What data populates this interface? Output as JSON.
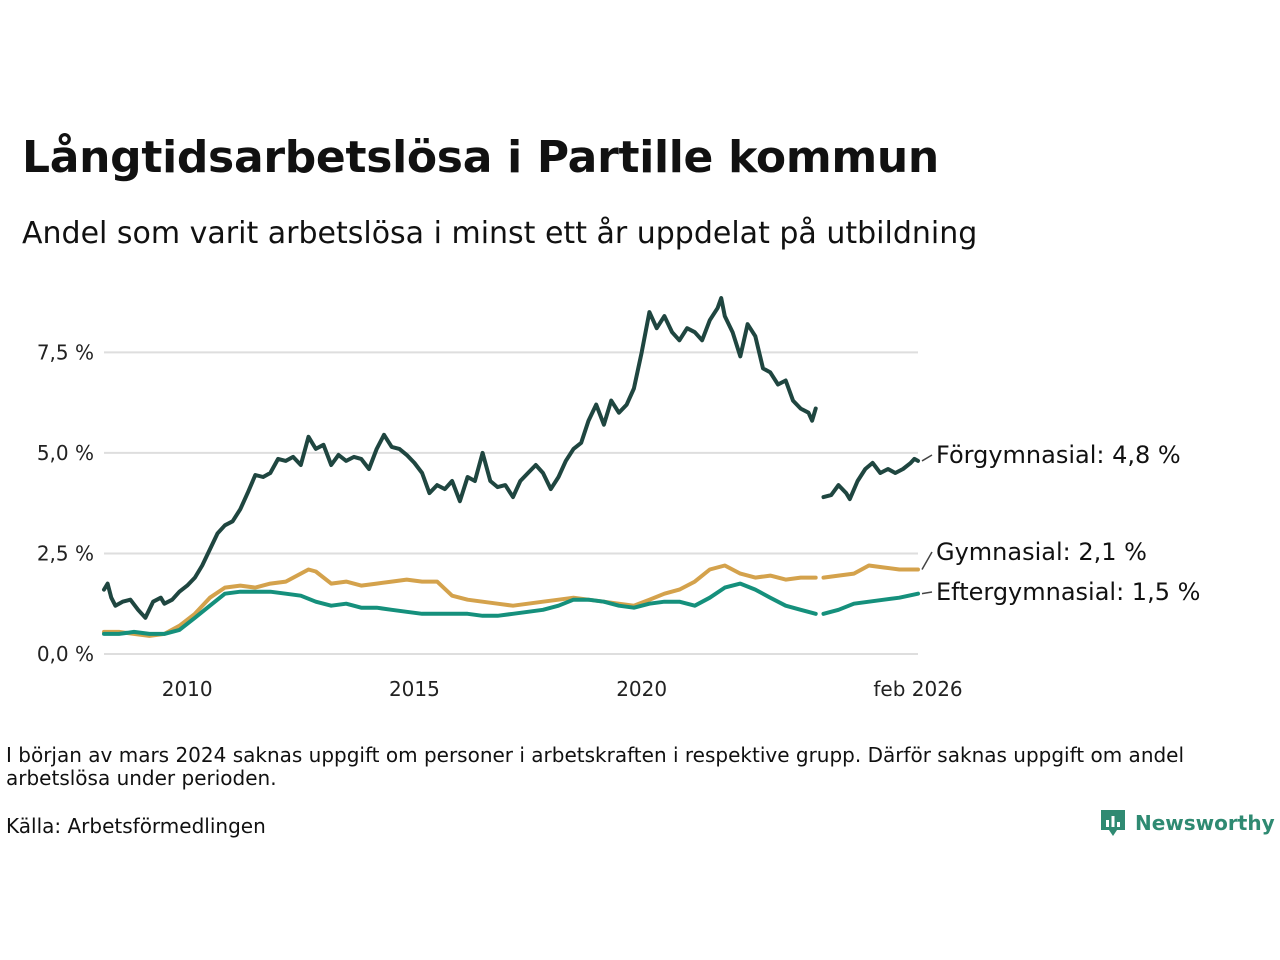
{
  "title": "Långtidsarbetslösa i Partille kommun",
  "subtitle": "Andel som varit arbetslösa i minst ett år uppdelat på utbildning",
  "note": "I början av mars 2024 saknas uppgift om personer i arbetskraften i respektive grupp. Därför saknas uppgift om andel arbetslösa under perioden.",
  "source": "Källa: Arbetsförmedlingen",
  "brand": "Newsworthy",
  "colors": {
    "forgymnasial": "#1f4640",
    "gymnasial": "#d4a24c",
    "eftergymnasial": "#15907c",
    "grid": "#dedede",
    "brand": "#2f8a72"
  },
  "chart_data": {
    "type": "line",
    "title": "Långtidsarbetslösa i Partille kommun",
    "xlabel": "",
    "ylabel": "",
    "xlim": [
      2008.17,
      2026.08
    ],
    "ylim": [
      0,
      9
    ],
    "yticks": [
      0,
      2.5,
      5,
      7.5
    ],
    "ytick_labels": [
      "0,0 %",
      "2,5 %",
      "5,0 %",
      "7,5 %"
    ],
    "xticks": [
      2010,
      2015,
      2020,
      2026.08
    ],
    "xtick_labels": [
      "2010",
      "2015",
      "2020",
      "feb 2026"
    ],
    "grid": true,
    "gap": [
      2023.75,
      2024.0
    ],
    "series": [
      {
        "name": "Förgymnasial",
        "label": "Förgymnasial: 4,8 %",
        "color_key": "forgymnasial",
        "points": [
          [
            2008.17,
            1.6
          ],
          [
            2008.25,
            1.75
          ],
          [
            2008.33,
            1.4
          ],
          [
            2008.42,
            1.2
          ],
          [
            2008.5,
            1.25
          ],
          [
            2008.58,
            1.3
          ],
          [
            2008.75,
            1.35
          ],
          [
            2008.92,
            1.1
          ],
          [
            2009.08,
            0.9
          ],
          [
            2009.25,
            1.3
          ],
          [
            2009.42,
            1.4
          ],
          [
            2009.5,
            1.25
          ],
          [
            2009.67,
            1.35
          ],
          [
            2009.83,
            1.55
          ],
          [
            2010.0,
            1.7
          ],
          [
            2010.17,
            1.9
          ],
          [
            2010.33,
            2.2
          ],
          [
            2010.5,
            2.6
          ],
          [
            2010.67,
            3.0
          ],
          [
            2010.83,
            3.2
          ],
          [
            2011.0,
            3.3
          ],
          [
            2011.17,
            3.6
          ],
          [
            2011.33,
            4.0
          ],
          [
            2011.5,
            4.45
          ],
          [
            2011.67,
            4.4
          ],
          [
            2011.83,
            4.5
          ],
          [
            2012.0,
            4.85
          ],
          [
            2012.17,
            4.8
          ],
          [
            2012.33,
            4.9
          ],
          [
            2012.5,
            4.7
          ],
          [
            2012.67,
            5.4
          ],
          [
            2012.83,
            5.1
          ],
          [
            2013.0,
            5.2
          ],
          [
            2013.17,
            4.7
          ],
          [
            2013.33,
            4.95
          ],
          [
            2013.5,
            4.8
          ],
          [
            2013.67,
            4.9
          ],
          [
            2013.83,
            4.85
          ],
          [
            2014.0,
            4.6
          ],
          [
            2014.17,
            5.1
          ],
          [
            2014.33,
            5.45
          ],
          [
            2014.5,
            5.15
          ],
          [
            2014.67,
            5.1
          ],
          [
            2014.83,
            4.95
          ],
          [
            2015.0,
            4.75
          ],
          [
            2015.17,
            4.5
          ],
          [
            2015.33,
            4.0
          ],
          [
            2015.5,
            4.2
          ],
          [
            2015.67,
            4.1
          ],
          [
            2015.83,
            4.3
          ],
          [
            2016.0,
            3.8
          ],
          [
            2016.17,
            4.4
          ],
          [
            2016.33,
            4.3
          ],
          [
            2016.5,
            5.0
          ],
          [
            2016.67,
            4.3
          ],
          [
            2016.83,
            4.15
          ],
          [
            2017.0,
            4.2
          ],
          [
            2017.17,
            3.9
          ],
          [
            2017.33,
            4.3
          ],
          [
            2017.5,
            4.5
          ],
          [
            2017.67,
            4.7
          ],
          [
            2017.83,
            4.5
          ],
          [
            2018.0,
            4.1
          ],
          [
            2018.17,
            4.4
          ],
          [
            2018.33,
            4.8
          ],
          [
            2018.5,
            5.1
          ],
          [
            2018.67,
            5.25
          ],
          [
            2018.83,
            5.8
          ],
          [
            2019.0,
            6.2
          ],
          [
            2019.17,
            5.7
          ],
          [
            2019.33,
            6.3
          ],
          [
            2019.5,
            6.0
          ],
          [
            2019.67,
            6.2
          ],
          [
            2019.83,
            6.6
          ],
          [
            2020.0,
            7.5
          ],
          [
            2020.17,
            8.5
          ],
          [
            2020.33,
            8.1
          ],
          [
            2020.5,
            8.4
          ],
          [
            2020.67,
            8.0
          ],
          [
            2020.83,
            7.8
          ],
          [
            2021.0,
            8.1
          ],
          [
            2021.17,
            8.0
          ],
          [
            2021.33,
            7.8
          ],
          [
            2021.5,
            8.3
          ],
          [
            2021.67,
            8.6
          ],
          [
            2021.75,
            8.85
          ],
          [
            2021.83,
            8.4
          ],
          [
            2022.0,
            8.0
          ],
          [
            2022.17,
            7.4
          ],
          [
            2022.33,
            8.2
          ],
          [
            2022.5,
            7.9
          ],
          [
            2022.67,
            7.1
          ],
          [
            2022.83,
            7.0
          ],
          [
            2023.0,
            6.7
          ],
          [
            2023.17,
            6.8
          ],
          [
            2023.33,
            6.3
          ],
          [
            2023.5,
            6.1
          ],
          [
            2023.67,
            6.0
          ],
          [
            2023.75,
            5.8
          ],
          [
            2023.83,
            6.1
          ],
          null,
          [
            2024.0,
            3.9
          ],
          [
            2024.17,
            3.95
          ],
          [
            2024.33,
            4.2
          ],
          [
            2024.5,
            4.0
          ],
          [
            2024.58,
            3.85
          ],
          [
            2024.75,
            4.3
          ],
          [
            2024.92,
            4.6
          ],
          [
            2025.08,
            4.75
          ],
          [
            2025.25,
            4.5
          ],
          [
            2025.42,
            4.6
          ],
          [
            2025.58,
            4.5
          ],
          [
            2025.75,
            4.6
          ],
          [
            2025.92,
            4.75
          ],
          [
            2026.0,
            4.85
          ],
          [
            2026.08,
            4.8
          ]
        ]
      },
      {
        "name": "Gymnasial",
        "label": "Gymnasial: 2,1 %",
        "color_key": "gymnasial",
        "points": [
          [
            2008.17,
            0.55
          ],
          [
            2008.5,
            0.55
          ],
          [
            2008.83,
            0.5
          ],
          [
            2009.17,
            0.45
          ],
          [
            2009.5,
            0.5
          ],
          [
            2009.83,
            0.7
          ],
          [
            2010.17,
            1.0
          ],
          [
            2010.5,
            1.4
          ],
          [
            2010.83,
            1.65
          ],
          [
            2011.17,
            1.7
          ],
          [
            2011.5,
            1.65
          ],
          [
            2011.83,
            1.75
          ],
          [
            2012.17,
            1.8
          ],
          [
            2012.5,
            2.0
          ],
          [
            2012.67,
            2.1
          ],
          [
            2012.83,
            2.05
          ],
          [
            2013.17,
            1.75
          ],
          [
            2013.5,
            1.8
          ],
          [
            2013.83,
            1.7
          ],
          [
            2014.17,
            1.75
          ],
          [
            2014.5,
            1.8
          ],
          [
            2014.83,
            1.85
          ],
          [
            2015.17,
            1.8
          ],
          [
            2015.5,
            1.8
          ],
          [
            2015.83,
            1.45
          ],
          [
            2016.17,
            1.35
          ],
          [
            2016.5,
            1.3
          ],
          [
            2016.83,
            1.25
          ],
          [
            2017.17,
            1.2
          ],
          [
            2017.5,
            1.25
          ],
          [
            2017.83,
            1.3
          ],
          [
            2018.17,
            1.35
          ],
          [
            2018.5,
            1.4
          ],
          [
            2018.83,
            1.35
          ],
          [
            2019.17,
            1.3
          ],
          [
            2019.5,
            1.25
          ],
          [
            2019.83,
            1.2
          ],
          [
            2020.17,
            1.35
          ],
          [
            2020.5,
            1.5
          ],
          [
            2020.83,
            1.6
          ],
          [
            2021.17,
            1.8
          ],
          [
            2021.5,
            2.1
          ],
          [
            2021.83,
            2.2
          ],
          [
            2022.17,
            2.0
          ],
          [
            2022.5,
            1.9
          ],
          [
            2022.83,
            1.95
          ],
          [
            2023.17,
            1.85
          ],
          [
            2023.5,
            1.9
          ],
          [
            2023.83,
            1.9
          ],
          null,
          [
            2024.0,
            1.9
          ],
          [
            2024.33,
            1.95
          ],
          [
            2024.67,
            2.0
          ],
          [
            2025.0,
            2.2
          ],
          [
            2025.33,
            2.15
          ],
          [
            2025.67,
            2.1
          ],
          [
            2026.08,
            2.1
          ]
        ]
      },
      {
        "name": "Eftergymnasial",
        "label": "Eftergymnasial: 1,5 %",
        "color_key": "eftergymnasial",
        "points": [
          [
            2008.17,
            0.5
          ],
          [
            2008.5,
            0.5
          ],
          [
            2008.83,
            0.55
          ],
          [
            2009.17,
            0.5
          ],
          [
            2009.5,
            0.5
          ],
          [
            2009.83,
            0.6
          ],
          [
            2010.17,
            0.9
          ],
          [
            2010.5,
            1.2
          ],
          [
            2010.83,
            1.5
          ],
          [
            2011.17,
            1.55
          ],
          [
            2011.5,
            1.55
          ],
          [
            2011.83,
            1.55
          ],
          [
            2012.17,
            1.5
          ],
          [
            2012.5,
            1.45
          ],
          [
            2012.83,
            1.3
          ],
          [
            2013.17,
            1.2
          ],
          [
            2013.5,
            1.25
          ],
          [
            2013.83,
            1.15
          ],
          [
            2014.17,
            1.15
          ],
          [
            2014.5,
            1.1
          ],
          [
            2014.83,
            1.05
          ],
          [
            2015.17,
            1.0
          ],
          [
            2015.5,
            1.0
          ],
          [
            2015.83,
            1.0
          ],
          [
            2016.17,
            1.0
          ],
          [
            2016.5,
            0.95
          ],
          [
            2016.83,
            0.95
          ],
          [
            2017.17,
            1.0
          ],
          [
            2017.5,
            1.05
          ],
          [
            2017.83,
            1.1
          ],
          [
            2018.17,
            1.2
          ],
          [
            2018.5,
            1.35
          ],
          [
            2018.83,
            1.35
          ],
          [
            2019.17,
            1.3
          ],
          [
            2019.5,
            1.2
          ],
          [
            2019.83,
            1.15
          ],
          [
            2020.17,
            1.25
          ],
          [
            2020.5,
            1.3
          ],
          [
            2020.83,
            1.3
          ],
          [
            2021.17,
            1.2
          ],
          [
            2021.5,
            1.4
          ],
          [
            2021.83,
            1.65
          ],
          [
            2022.17,
            1.75
          ],
          [
            2022.5,
            1.6
          ],
          [
            2022.83,
            1.4
          ],
          [
            2023.17,
            1.2
          ],
          [
            2023.5,
            1.1
          ],
          [
            2023.83,
            1.0
          ],
          null,
          [
            2024.0,
            1.0
          ],
          [
            2024.33,
            1.1
          ],
          [
            2024.67,
            1.25
          ],
          [
            2025.0,
            1.3
          ],
          [
            2025.33,
            1.35
          ],
          [
            2025.67,
            1.4
          ],
          [
            2026.08,
            1.5
          ]
        ]
      }
    ]
  }
}
